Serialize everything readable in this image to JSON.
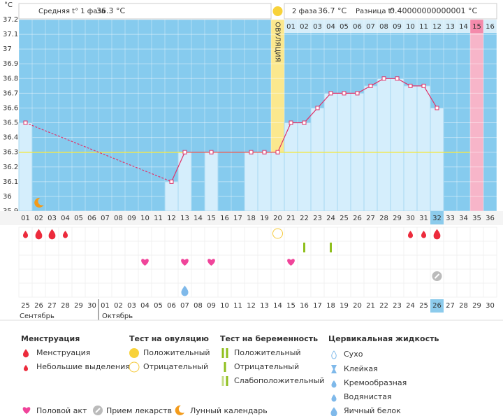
{
  "axis_unit": "°С",
  "header": {
    "phase1_label": "Средняя t° 1 фаза",
    "phase1_value": "36.3 °C",
    "phase2_label": "2 фаза",
    "phase2_value": "36.7 °C",
    "diff_label": "Разница t°",
    "diff_value": "0.40000000000001 °C",
    "ovulation_label": "ОВУЛЯЦИЯ",
    "phase2_days": [
      "01",
      "02",
      "03",
      "04",
      "05",
      "06",
      "07",
      "08",
      "09",
      "10",
      "11",
      "12",
      "13",
      "14",
      "15",
      "16"
    ]
  },
  "chart_data": {
    "type": "line",
    "categories": [
      "01",
      "02",
      "03",
      "04",
      "05",
      "06",
      "07",
      "08",
      "09",
      "10",
      "11",
      "12",
      "13",
      "14",
      "15",
      "16",
      "17",
      "18",
      "19",
      "20",
      "21",
      "22",
      "23",
      "24",
      "25",
      "26",
      "27",
      "28",
      "29",
      "30",
      "31",
      "32",
      "33",
      "34",
      "35",
      "36"
    ],
    "values": [
      36.5,
      null,
      null,
      null,
      null,
      null,
      null,
      null,
      null,
      null,
      null,
      36.1,
      36.3,
      null,
      36.3,
      null,
      null,
      36.3,
      36.3,
      36.3,
      36.5,
      36.5,
      36.6,
      36.7,
      36.7,
      36.7,
      36.75,
      36.8,
      36.8,
      36.75,
      36.75,
      36.6,
      null,
      null,
      null,
      null
    ],
    "color": "#e0336a",
    "cover_line": 36.3,
    "ylim": [
      35.9,
      37.2
    ],
    "yticks": [
      35.9,
      36,
      36.1,
      36.2,
      36.3,
      36.4,
      36.5,
      36.6,
      36.7,
      36.8,
      36.9,
      37,
      37.1,
      37.2
    ],
    "grid": true
  },
  "calendar": {
    "dates": [
      "25",
      "26",
      "27",
      "28",
      "29",
      "30",
      "01",
      "02",
      "03",
      "04",
      "05",
      "06",
      "07",
      "08",
      "09",
      "10",
      "11",
      "12",
      "13",
      "14",
      "15",
      "16",
      "17",
      "18",
      "19",
      "20",
      "21",
      "22",
      "23",
      "24",
      "25",
      "26",
      "27",
      "28",
      "29",
      "30"
    ],
    "months": [
      "Сентябрь",
      "Октябрь"
    ]
  },
  "legend": {
    "menstruation": {
      "title": "Менструация",
      "items": [
        "Менструация",
        "Небольшие выделения"
      ]
    },
    "ovulation_test": {
      "title": "Тест на овуляцию",
      "items": [
        "Положительный",
        "Отрицательный"
      ]
    },
    "pregnancy_test": {
      "title": "Тест на беременность",
      "items": [
        "Положительный",
        "Отрицательный",
        "Слабоположительный"
      ]
    },
    "cervical_fluid": {
      "title": "Цервикальная жидкость",
      "items": [
        "Сухо",
        "Клейкая",
        "Кремообразная",
        "Водянистая",
        "Яичный белок"
      ]
    },
    "other": [
      "Половой акт",
      "Прием лекарств",
      "Лунный календарь"
    ]
  }
}
